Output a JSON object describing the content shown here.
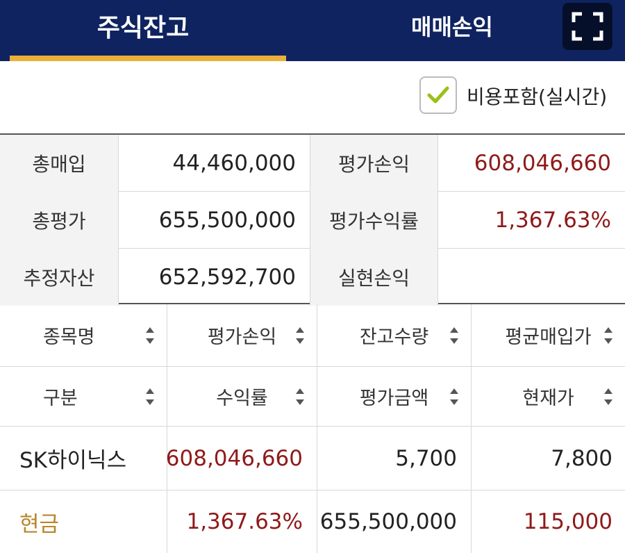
{
  "tabs": [
    {
      "label": "주식잔고",
      "active": true
    },
    {
      "label": "매매손익",
      "active": false
    }
  ],
  "header": {
    "fullscreen_icon": "expand-icon"
  },
  "option": {
    "label": "비용포함(실시간)",
    "checked": true
  },
  "summary": {
    "rows": [
      {
        "label1": "총매입",
        "value1": "44,460,000",
        "label2": "평가손익",
        "value2": "608,046,660"
      },
      {
        "label1": "총평가",
        "value1": "655,500,000",
        "label2": "평가수익률",
        "value2": "1,367.63%"
      },
      {
        "label1": "추정자산",
        "value1": "652,592,700",
        "label2": "실현손익",
        "value2": ""
      }
    ]
  },
  "table": {
    "header_row1": [
      "종목명",
      "평가손익",
      "잔고수량",
      "평균매입가"
    ],
    "header_row2": [
      "구분",
      "수익률",
      "평가금액",
      "현재가"
    ],
    "rows": [
      [
        "SK하이닉스",
        "608,046,660",
        "5,700",
        "7,800"
      ],
      [
        "현금",
        "1,367.63%",
        "655,500,000",
        "115,000"
      ]
    ]
  },
  "colors": {
    "header_bg": "#0f2360",
    "tab_underline": "#e9b13a",
    "profit_red": "#8f1a1a",
    "cash_gold": "#b8862a",
    "checkmark": "#9bbf16"
  }
}
